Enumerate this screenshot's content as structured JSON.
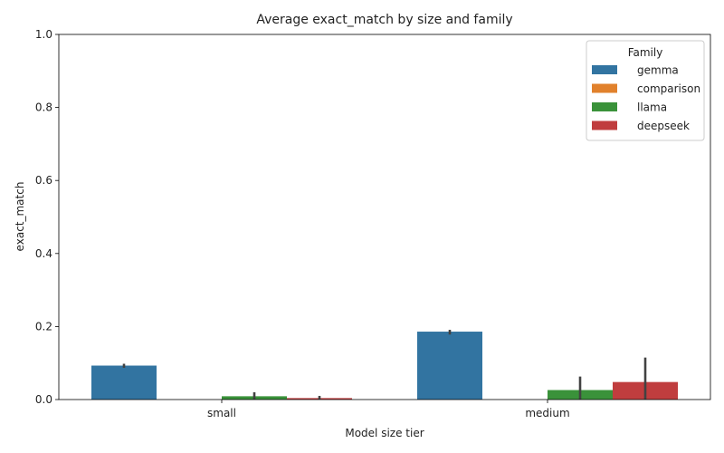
{
  "chart_data": {
    "type": "bar",
    "title": "Average exact_match by size and family",
    "xlabel": "Model size tier",
    "ylabel": "exact_match",
    "categories": [
      "small",
      "medium"
    ],
    "ylim": [
      0,
      1.0
    ],
    "yticks": [
      "0.0",
      "0.2",
      "0.4",
      "0.6",
      "0.8",
      "1.0"
    ],
    "ytick_values": [
      0,
      0.2,
      0.4,
      0.6,
      0.8,
      1.0
    ],
    "legend_title": "Family",
    "legend_position": "top-right",
    "grid": false,
    "series": [
      {
        "name": "gemma",
        "color": "#3274a1",
        "values": [
          0.093,
          0.186
        ],
        "error_low": [
          0.087,
          0.178
        ],
        "error_high": [
          0.098,
          0.191
        ]
      },
      {
        "name": "comparison",
        "color": "#e1812c",
        "values": [
          0,
          0
        ],
        "error_low": [
          null,
          null
        ],
        "error_high": [
          null,
          null
        ]
      },
      {
        "name": "llama",
        "color": "#3a923a",
        "values": [
          0.009,
          0.026
        ],
        "error_low": [
          0.001,
          0.0
        ],
        "error_high": [
          0.02,
          0.063
        ]
      },
      {
        "name": "deepseek",
        "color": "#c03d3e",
        "values": [
          0.004,
          0.048
        ],
        "error_low": [
          0.0,
          0.0
        ],
        "error_high": [
          0.01,
          0.115
        ]
      }
    ]
  }
}
